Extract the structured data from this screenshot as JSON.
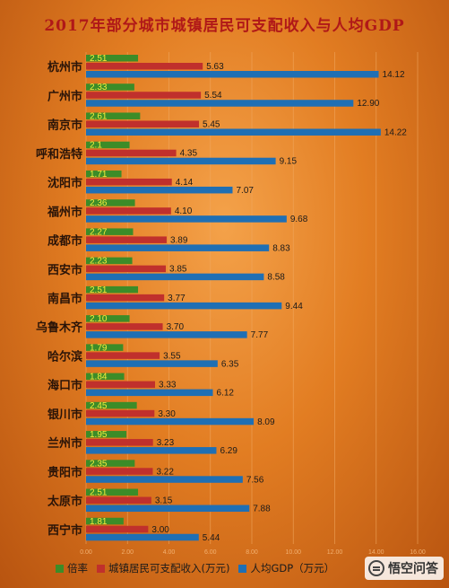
{
  "chart_data": {
    "type": "bar",
    "orientation": "horizontal",
    "title": "2017年部分城市城镇居民可支配收入与人均GDP",
    "categories": [
      "杭州市",
      "广州市",
      "南京市",
      "呼和浩特",
      "沈阳市",
      "福州市",
      "成都市",
      "西安市",
      "南昌市",
      "乌鲁木齐",
      "哈尔滨",
      "海口市",
      "银川市",
      "兰州市",
      "贵阳市",
      "太原市",
      "西宁市"
    ],
    "series": [
      {
        "name": "倍率",
        "color": "#3c8c28",
        "values": [
          2.51,
          2.33,
          2.61,
          2.1,
          1.71,
          2.36,
          2.27,
          2.23,
          2.51,
          2.1,
          1.79,
          1.84,
          2.45,
          1.95,
          2.35,
          2.51,
          1.81
        ],
        "labels": [
          "2.51",
          "2.33",
          "2.61",
          "2.1",
          "1.71",
          "2.36",
          "2.27",
          "2.23",
          "2.51",
          "2.10",
          "1.79",
          "1.84",
          "2.45",
          "1.95",
          "2.35",
          "2.51",
          "1.81"
        ]
      },
      {
        "name": "城镇居民可支配收入(万元)",
        "color": "#c0302c",
        "values": [
          5.63,
          5.54,
          5.45,
          4.35,
          4.14,
          4.1,
          3.89,
          3.85,
          3.77,
          3.7,
          3.55,
          3.33,
          3.3,
          3.23,
          3.22,
          3.15,
          3.0
        ],
        "labels": [
          "5.63",
          "5.54",
          "5.45",
          "4.35",
          "4.14",
          "4.10",
          "3.89",
          "3.85",
          "3.77",
          "3.70",
          "3.55",
          "3.33",
          "3.30",
          "3.23",
          "3.22",
          "3.15",
          "3.00"
        ]
      },
      {
        "name": "人均GDP（万元）",
        "color": "#1f6fb4",
        "values": [
          14.12,
          12.9,
          14.22,
          9.15,
          7.07,
          9.68,
          8.83,
          8.58,
          9.44,
          7.77,
          6.35,
          6.12,
          8.09,
          6.29,
          7.56,
          7.88,
          5.44
        ],
        "labels": [
          "14.12",
          "12.90",
          "14.22",
          "9.15",
          "7.07",
          "9.68",
          "8.83",
          "8.58",
          "9.44",
          "7.77",
          "6.35",
          "6.12",
          "8.09",
          "6.29",
          "7.56",
          "7.88",
          "5.44"
        ]
      }
    ],
    "xlim": [
      0,
      16
    ],
    "xticks": [
      "0.00",
      "2.00",
      "4.00",
      "6.00",
      "8.00",
      "10.00",
      "12.00",
      "14.00",
      "16.00"
    ],
    "grid": true,
    "legend_position": "bottom"
  },
  "legend": {
    "rate": "倍率",
    "income": "城镇居民可支配收入(万元)",
    "gdp": "人均GDP（万元）"
  },
  "watermark": {
    "text": "悟空问答",
    "icon": "speech-bubble-icon"
  }
}
